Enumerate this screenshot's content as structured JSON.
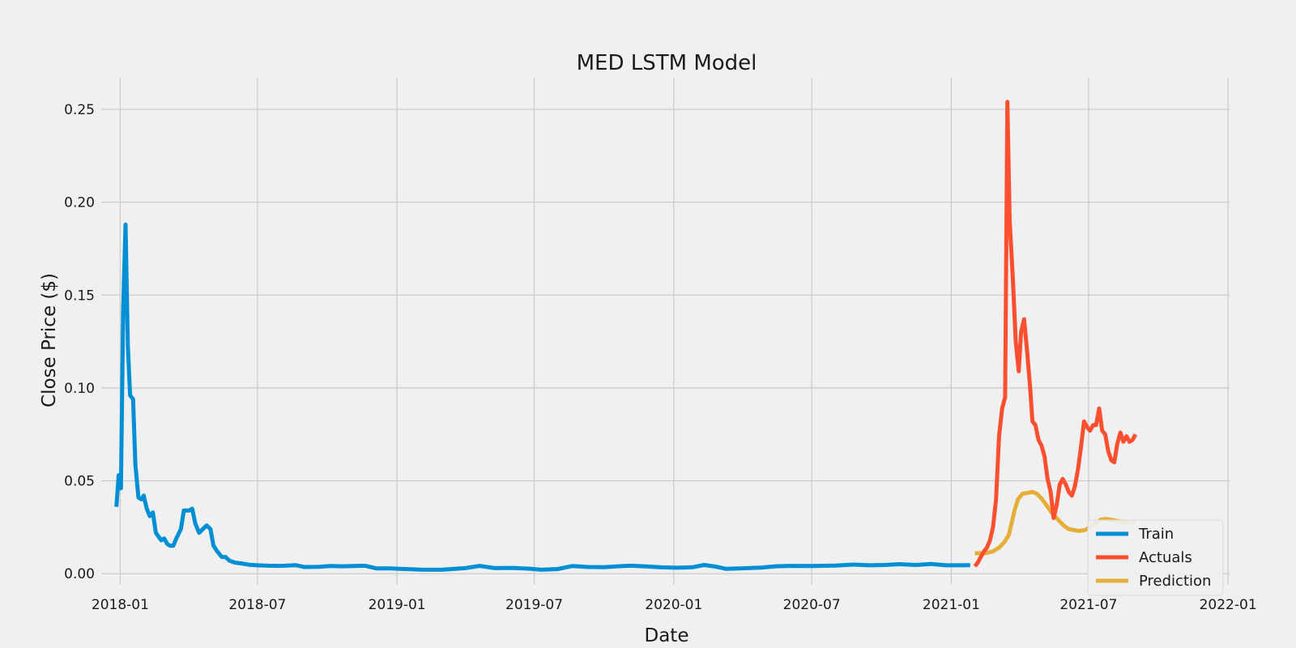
{
  "chart_data": {
    "type": "line",
    "title": "MED LSTM Model",
    "xlabel": "Date",
    "ylabel": "Close Price ($)",
    "xlim": [
      "2017-12-07",
      "2022-01-03"
    ],
    "ylim": [
      -0.006,
      0.267
    ],
    "x_ticks": [
      "2018-01",
      "2018-07",
      "2019-01",
      "2019-07",
      "2020-01",
      "2020-07",
      "2021-01",
      "2021-07",
      "2022-01"
    ],
    "y_ticks": [
      "0.00",
      "0.05",
      "0.10",
      "0.15",
      "0.20",
      "0.25"
    ],
    "grid": true,
    "legend_position": "lower right",
    "series": [
      {
        "name": "Train",
        "color": "#008fd5",
        "points": [
          [
            "2017-12-27",
            0.036
          ],
          [
            "2017-12-30",
            0.053
          ],
          [
            "2018-01-02",
            0.046
          ],
          [
            "2018-01-05",
            0.143
          ],
          [
            "2018-01-08",
            0.188
          ],
          [
            "2018-01-11",
            0.123
          ],
          [
            "2018-01-14",
            0.096
          ],
          [
            "2018-01-18",
            0.094
          ],
          [
            "2018-01-21",
            0.059
          ],
          [
            "2018-01-25",
            0.041
          ],
          [
            "2018-01-29",
            0.04
          ],
          [
            "2018-02-01",
            0.042
          ],
          [
            "2018-02-05",
            0.035
          ],
          [
            "2018-02-09",
            0.031
          ],
          [
            "2018-02-13",
            0.033
          ],
          [
            "2018-02-17",
            0.022
          ],
          [
            "2018-02-24",
            0.018
          ],
          [
            "2018-02-28",
            0.019
          ],
          [
            "2018-03-04",
            0.016
          ],
          [
            "2018-03-08",
            0.015
          ],
          [
            "2018-03-12",
            0.015
          ],
          [
            "2018-03-16",
            0.019
          ],
          [
            "2018-03-22",
            0.024
          ],
          [
            "2018-03-26",
            0.034
          ],
          [
            "2018-04-02",
            0.034
          ],
          [
            "2018-04-06",
            0.035
          ],
          [
            "2018-04-10",
            0.027
          ],
          [
            "2018-04-15",
            0.022
          ],
          [
            "2018-04-20",
            0.024
          ],
          [
            "2018-04-25",
            0.026
          ],
          [
            "2018-04-30",
            0.024
          ],
          [
            "2018-05-04",
            0.015
          ],
          [
            "2018-05-09",
            0.012
          ],
          [
            "2018-05-15",
            0.009
          ],
          [
            "2018-05-20",
            0.009
          ],
          [
            "2018-05-25",
            0.007
          ],
          [
            "2018-06-01",
            0.006
          ],
          [
            "2018-06-10",
            0.0055
          ],
          [
            "2018-06-20",
            0.0048
          ],
          [
            "2018-07-01",
            0.0045
          ],
          [
            "2018-07-15",
            0.0043
          ],
          [
            "2018-08-01",
            0.0042
          ],
          [
            "2018-08-20",
            0.0046
          ],
          [
            "2018-09-01",
            0.0036
          ],
          [
            "2018-09-20",
            0.0037
          ],
          [
            "2018-10-05",
            0.0041
          ],
          [
            "2018-10-20",
            0.004
          ],
          [
            "2018-11-05",
            0.0041
          ],
          [
            "2018-11-20",
            0.0043
          ],
          [
            "2018-12-05",
            0.0028
          ],
          [
            "2018-12-20",
            0.0029
          ],
          [
            "2019-01-05",
            0.0026
          ],
          [
            "2019-02-01",
            0.0022
          ],
          [
            "2019-03-01",
            0.0021
          ],
          [
            "2019-04-01",
            0.003
          ],
          [
            "2019-04-20",
            0.0042
          ],
          [
            "2019-05-10",
            0.003
          ],
          [
            "2019-06-01",
            0.0031
          ],
          [
            "2019-06-25",
            0.0027
          ],
          [
            "2019-07-10",
            0.0021
          ],
          [
            "2019-08-01",
            0.0025
          ],
          [
            "2019-08-20",
            0.0041
          ],
          [
            "2019-09-10",
            0.0036
          ],
          [
            "2019-10-01",
            0.0035
          ],
          [
            "2019-10-20",
            0.004
          ],
          [
            "2019-11-05",
            0.0043
          ],
          [
            "2019-11-25",
            0.0039
          ],
          [
            "2019-12-15",
            0.0034
          ],
          [
            "2020-01-05",
            0.0032
          ],
          [
            "2020-01-25",
            0.0034
          ],
          [
            "2020-02-10",
            0.0047
          ],
          [
            "2020-02-25",
            0.0038
          ],
          [
            "2020-03-10",
            0.0026
          ],
          [
            "2020-04-01",
            0.0029
          ],
          [
            "2020-04-25",
            0.0033
          ],
          [
            "2020-05-15",
            0.004
          ],
          [
            "2020-06-01",
            0.0042
          ],
          [
            "2020-07-01",
            0.0041
          ],
          [
            "2020-08-01",
            0.0044
          ],
          [
            "2020-08-25",
            0.0049
          ],
          [
            "2020-09-15",
            0.0045
          ],
          [
            "2020-10-05",
            0.0047
          ],
          [
            "2020-10-25",
            0.0051
          ],
          [
            "2020-11-15",
            0.0047
          ],
          [
            "2020-12-05",
            0.0052
          ],
          [
            "2020-12-25",
            0.0045
          ],
          [
            "2021-01-10",
            0.0045
          ],
          [
            "2021-01-26",
            0.0046
          ]
        ]
      },
      {
        "name": "Actuals",
        "color": "#fc4f30",
        "points": [
          [
            "2021-02-01",
            0.004
          ],
          [
            "2021-02-05",
            0.006
          ],
          [
            "2021-02-09",
            0.009
          ],
          [
            "2021-02-13",
            0.012
          ],
          [
            "2021-02-17",
            0.014
          ],
          [
            "2021-02-21",
            0.018
          ],
          [
            "2021-02-25",
            0.025
          ],
          [
            "2021-03-01",
            0.04
          ],
          [
            "2021-03-05",
            0.074
          ],
          [
            "2021-03-09",
            0.089
          ],
          [
            "2021-03-13",
            0.095
          ],
          [
            "2021-03-16",
            0.254
          ],
          [
            "2021-03-19",
            0.19
          ],
          [
            "2021-03-23",
            0.16
          ],
          [
            "2021-03-27",
            0.125
          ],
          [
            "2021-03-31",
            0.109
          ],
          [
            "2021-04-03",
            0.13
          ],
          [
            "2021-04-07",
            0.137
          ],
          [
            "2021-04-11",
            0.12
          ],
          [
            "2021-04-15",
            0.1
          ],
          [
            "2021-04-18",
            0.082
          ],
          [
            "2021-04-22",
            0.08
          ],
          [
            "2021-04-26",
            0.072
          ],
          [
            "2021-04-30",
            0.069
          ],
          [
            "2021-05-04",
            0.063
          ],
          [
            "2021-05-08",
            0.051
          ],
          [
            "2021-05-12",
            0.044
          ],
          [
            "2021-05-16",
            0.03
          ],
          [
            "2021-05-20",
            0.037
          ],
          [
            "2021-05-24",
            0.048
          ],
          [
            "2021-05-28",
            0.051
          ],
          [
            "2021-06-01",
            0.048
          ],
          [
            "2021-06-05",
            0.044
          ],
          [
            "2021-06-09",
            0.042
          ],
          [
            "2021-06-13",
            0.047
          ],
          [
            "2021-06-17",
            0.056
          ],
          [
            "2021-06-21",
            0.068
          ],
          [
            "2021-06-25",
            0.082
          ],
          [
            "2021-06-29",
            0.079
          ],
          [
            "2021-07-03",
            0.077
          ],
          [
            "2021-07-07",
            0.08
          ],
          [
            "2021-07-11",
            0.08
          ],
          [
            "2021-07-15",
            0.089
          ],
          [
            "2021-07-19",
            0.077
          ],
          [
            "2021-07-23",
            0.075
          ],
          [
            "2021-07-27",
            0.066
          ],
          [
            "2021-07-31",
            0.061
          ],
          [
            "2021-08-04",
            0.06
          ],
          [
            "2021-08-08",
            0.07
          ],
          [
            "2021-08-12",
            0.076
          ],
          [
            "2021-08-16",
            0.071
          ],
          [
            "2021-08-20",
            0.074
          ],
          [
            "2021-08-24",
            0.071
          ],
          [
            "2021-08-28",
            0.072
          ],
          [
            "2021-09-01",
            0.075
          ]
        ]
      },
      {
        "name": "Prediction",
        "color": "#e5ae38",
        "points": [
          [
            "2021-02-01",
            0.011
          ],
          [
            "2021-02-15",
            0.011
          ],
          [
            "2021-02-25",
            0.012
          ],
          [
            "2021-03-05",
            0.014
          ],
          [
            "2021-03-12",
            0.017
          ],
          [
            "2021-03-18",
            0.021
          ],
          [
            "2021-03-22",
            0.028
          ],
          [
            "2021-03-26",
            0.035
          ],
          [
            "2021-03-30",
            0.04
          ],
          [
            "2021-04-05",
            0.043
          ],
          [
            "2021-04-12",
            0.0435
          ],
          [
            "2021-04-18",
            0.044
          ],
          [
            "2021-04-24",
            0.043
          ],
          [
            "2021-05-01",
            0.04
          ],
          [
            "2021-05-08",
            0.036
          ],
          [
            "2021-05-15",
            0.032
          ],
          [
            "2021-05-22",
            0.029
          ],
          [
            "2021-05-29",
            0.026
          ],
          [
            "2021-06-05",
            0.024
          ],
          [
            "2021-06-12",
            0.0235
          ],
          [
            "2021-06-19",
            0.023
          ],
          [
            "2021-06-26",
            0.0235
          ],
          [
            "2021-07-03",
            0.025
          ],
          [
            "2021-07-10",
            0.027
          ],
          [
            "2021-07-17",
            0.029
          ],
          [
            "2021-07-24",
            0.0295
          ],
          [
            "2021-07-31",
            0.029
          ],
          [
            "2021-08-07",
            0.0285
          ],
          [
            "2021-08-14",
            0.028
          ],
          [
            "2021-08-21",
            0.028
          ],
          [
            "2021-09-01",
            0.028
          ]
        ]
      }
    ]
  }
}
